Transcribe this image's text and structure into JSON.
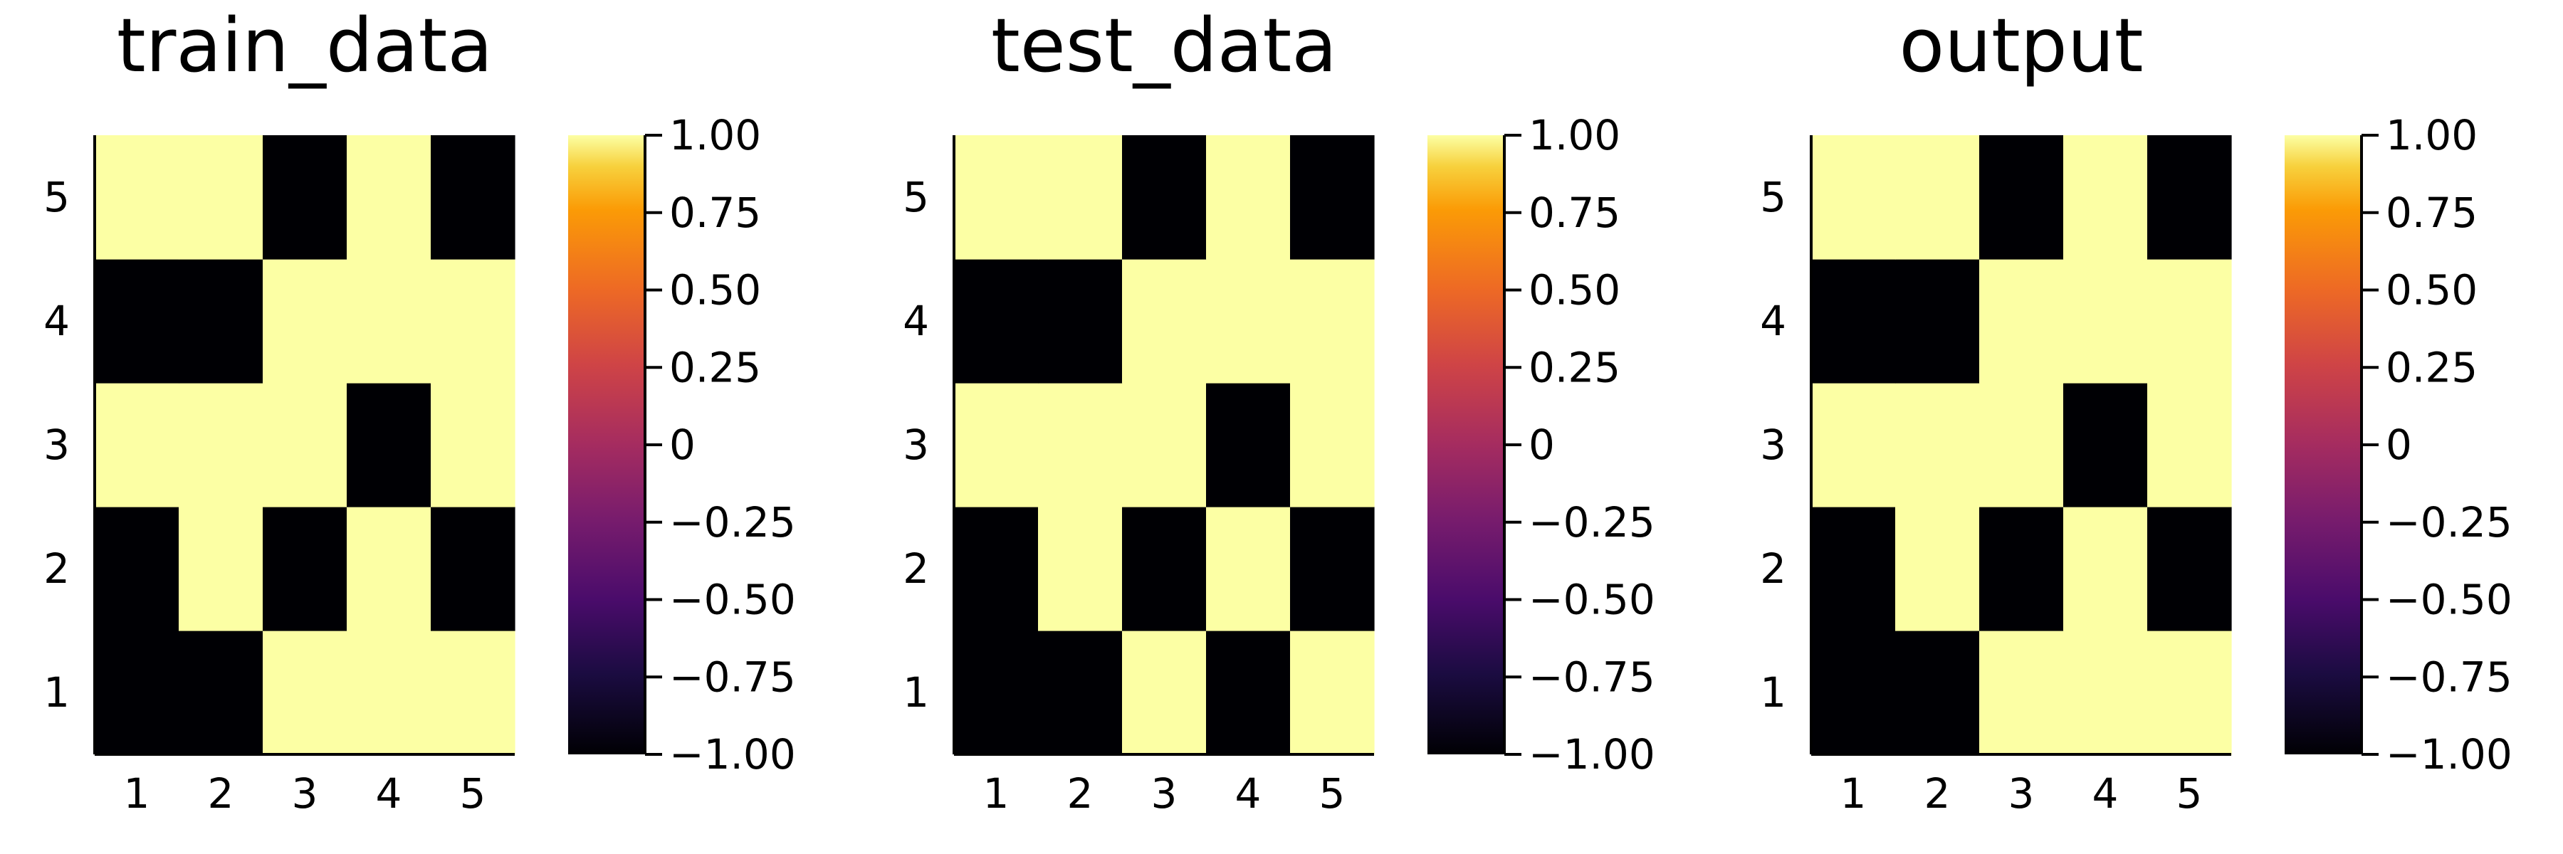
{
  "chart_data": [
    {
      "type": "heatmap",
      "title": "train_data",
      "x_ticks": [
        "1",
        "2",
        "3",
        "4",
        "5"
      ],
      "y_ticks": [
        "1",
        "2",
        "3",
        "4",
        "5"
      ],
      "grid": false,
      "values": [
        [
          -1,
          -1,
          1,
          1,
          1
        ],
        [
          -1,
          1,
          -1,
          1,
          -1
        ],
        [
          1,
          1,
          1,
          -1,
          1
        ],
        [
          -1,
          -1,
          1,
          1,
          1
        ],
        [
          1,
          1,
          -1,
          1,
          -1
        ]
      ],
      "colorbar": {
        "colormap": "inferno",
        "range": [
          -1,
          1
        ],
        "tick_values": [
          -1,
          -0.75,
          -0.5,
          -0.25,
          0,
          0.25,
          0.5,
          0.75,
          1
        ],
        "tick_labels": [
          "−1.00",
          "−0.75",
          "−0.50",
          "−0.25",
          "0",
          "0.25",
          "0.50",
          "0.75",
          "1.00"
        ]
      }
    },
    {
      "type": "heatmap",
      "title": "test_data",
      "x_ticks": [
        "1",
        "2",
        "3",
        "4",
        "5"
      ],
      "y_ticks": [
        "1",
        "2",
        "3",
        "4",
        "5"
      ],
      "grid": false,
      "values": [
        [
          -1,
          -1,
          1,
          -1,
          1
        ],
        [
          -1,
          1,
          -1,
          1,
          -1
        ],
        [
          1,
          1,
          1,
          -1,
          1
        ],
        [
          -1,
          -1,
          1,
          1,
          1
        ],
        [
          1,
          1,
          -1,
          1,
          -1
        ]
      ],
      "colorbar": {
        "colormap": "inferno",
        "range": [
          -1,
          1
        ],
        "tick_values": [
          -1,
          -0.75,
          -0.5,
          -0.25,
          0,
          0.25,
          0.5,
          0.75,
          1
        ],
        "tick_labels": [
          "−1.00",
          "−0.75",
          "−0.50",
          "−0.25",
          "0",
          "0.25",
          "0.50",
          "0.75",
          "1.00"
        ]
      }
    },
    {
      "type": "heatmap",
      "title": "output",
      "x_ticks": [
        "1",
        "2",
        "3",
        "4",
        "5"
      ],
      "y_ticks": [
        "1",
        "2",
        "3",
        "4",
        "5"
      ],
      "grid": false,
      "values": [
        [
          -1,
          -1,
          1,
          1,
          1
        ],
        [
          -1,
          1,
          -1,
          1,
          -1
        ],
        [
          1,
          1,
          1,
          -1,
          1
        ],
        [
          -1,
          -1,
          1,
          1,
          1
        ],
        [
          1,
          1,
          -1,
          1,
          -1
        ]
      ],
      "colorbar": {
        "colormap": "inferno",
        "range": [
          -1,
          1
        ],
        "tick_values": [
          -1,
          -0.75,
          -0.5,
          -0.25,
          0,
          0.25,
          0.5,
          0.75,
          1
        ],
        "tick_labels": [
          "−1.00",
          "−0.75",
          "−0.50",
          "−0.25",
          "0",
          "0.25",
          "0.50",
          "0.75",
          "1.00"
        ]
      }
    }
  ]
}
